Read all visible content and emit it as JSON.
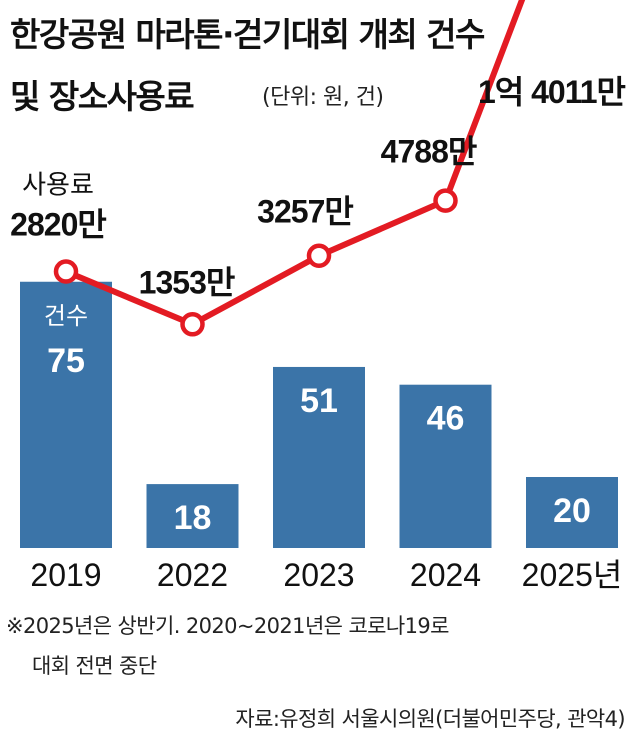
{
  "title_line1": "한강공원 마라톤·걷기대회 개최 건수",
  "title_line2": "및 장소사용료",
  "unit_note": "(단위: 원, 건)",
  "footnote_line1": "※2025년은 상반기. 2020~2021년은 코로나19로",
  "footnote_line2": "대회 전면 중단",
  "source": "자료:유정희 서울시의원(더불어민주당, 관악4)",
  "colors": {
    "bar": "#3b74a8",
    "line": "#e31b23",
    "marker_fill": "#ffffff"
  },
  "chart_data": {
    "type": "bar+line",
    "categories": [
      "2019",
      "2022",
      "2023",
      "2024",
      "2025년"
    ],
    "bars": {
      "name": "건수",
      "values": [
        75,
        18,
        51,
        46,
        20
      ],
      "labels": [
        "75",
        "18",
        "51",
        "46",
        "20"
      ]
    },
    "line": {
      "name": "사용료",
      "values": [
        28200000,
        13530000,
        32570000,
        47880000,
        140110000
      ],
      "labels": [
        "2820만",
        "1353만",
        "3257만",
        "4788만",
        "1억 4011만"
      ]
    }
  }
}
